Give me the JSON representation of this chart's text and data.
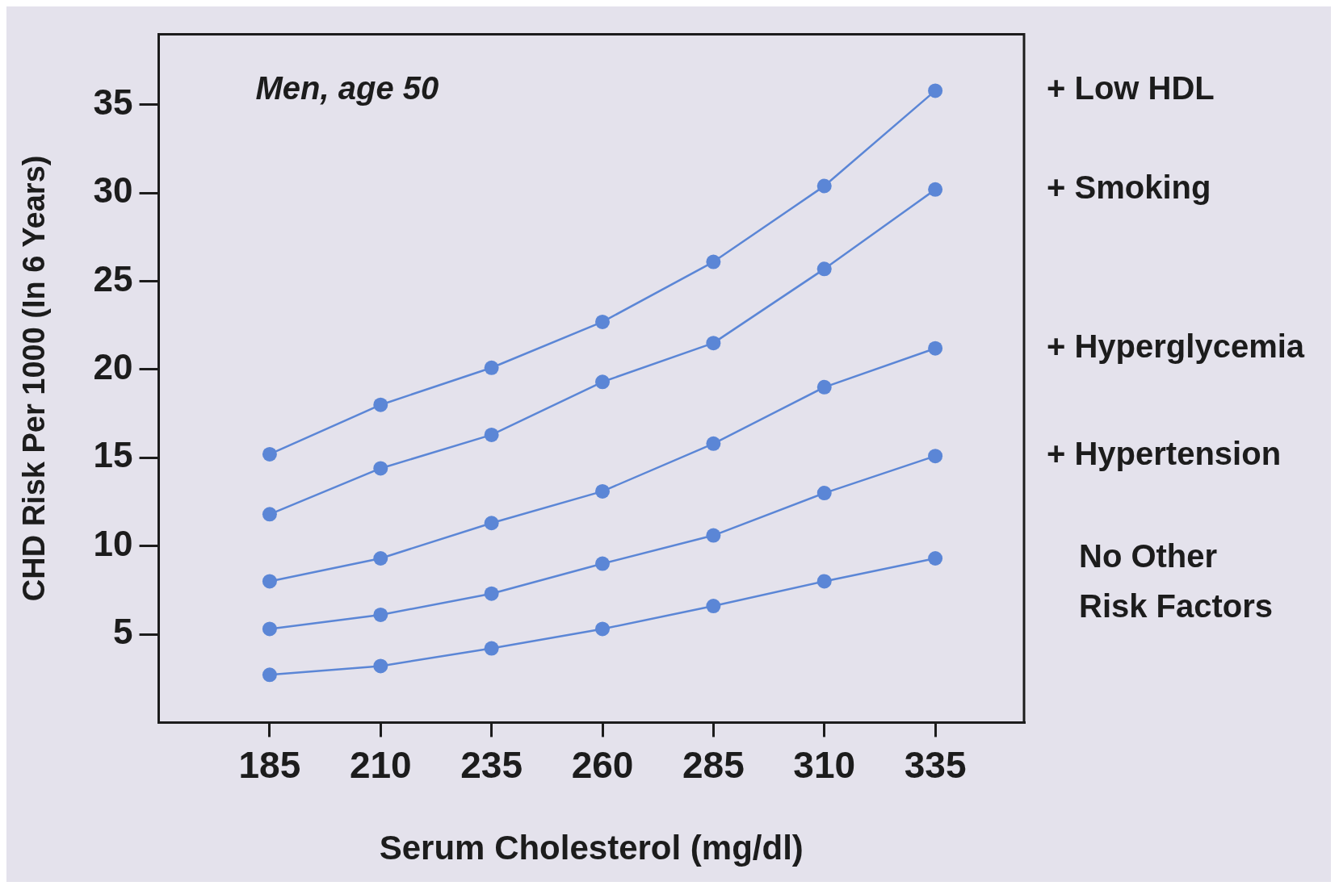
{
  "chart_data": {
    "type": "line",
    "xlabel": "Serum Cholesterol (mg/dl)",
    "ylabel": "CHD Risk Per 1000 (In 6 Years)",
    "annotations": [
      "Men, age 50"
    ],
    "x": [
      185,
      210,
      235,
      260,
      285,
      310,
      335
    ],
    "xlim": [
      160,
      355
    ],
    "xticks": [
      185,
      210,
      235,
      260,
      285,
      310,
      335
    ],
    "ylim": [
      0,
      39
    ],
    "yticks": [
      5,
      10,
      15,
      20,
      25,
      30,
      35
    ],
    "series": [
      {
        "name": "+ Low HDL",
        "color": "#5b86d6",
        "values": [
          15.2,
          18.0,
          20.1,
          22.7,
          26.1,
          30.4,
          35.8
        ]
      },
      {
        "name": "+ Smoking",
        "color": "#5b86d6",
        "values": [
          11.8,
          14.4,
          16.3,
          19.3,
          21.5,
          25.7,
          30.2
        ]
      },
      {
        "name": "+ Hyperglycemia",
        "color": "#5b86d6",
        "values": [
          8.0,
          9.3,
          11.3,
          13.1,
          15.8,
          19.0,
          21.2
        ]
      },
      {
        "name": "+ Hypertension",
        "color": "#5b86d6",
        "values": [
          5.3,
          6.1,
          7.3,
          9.0,
          10.6,
          13.0,
          15.1
        ]
      },
      {
        "name": "No Other\nRisk Factors",
        "color": "#5b86d6",
        "values": [
          2.7,
          3.2,
          4.2,
          5.3,
          6.6,
          8.0,
          9.3
        ]
      }
    ],
    "grid": false,
    "legend": false,
    "marker": "circle",
    "line_style": "solid"
  }
}
